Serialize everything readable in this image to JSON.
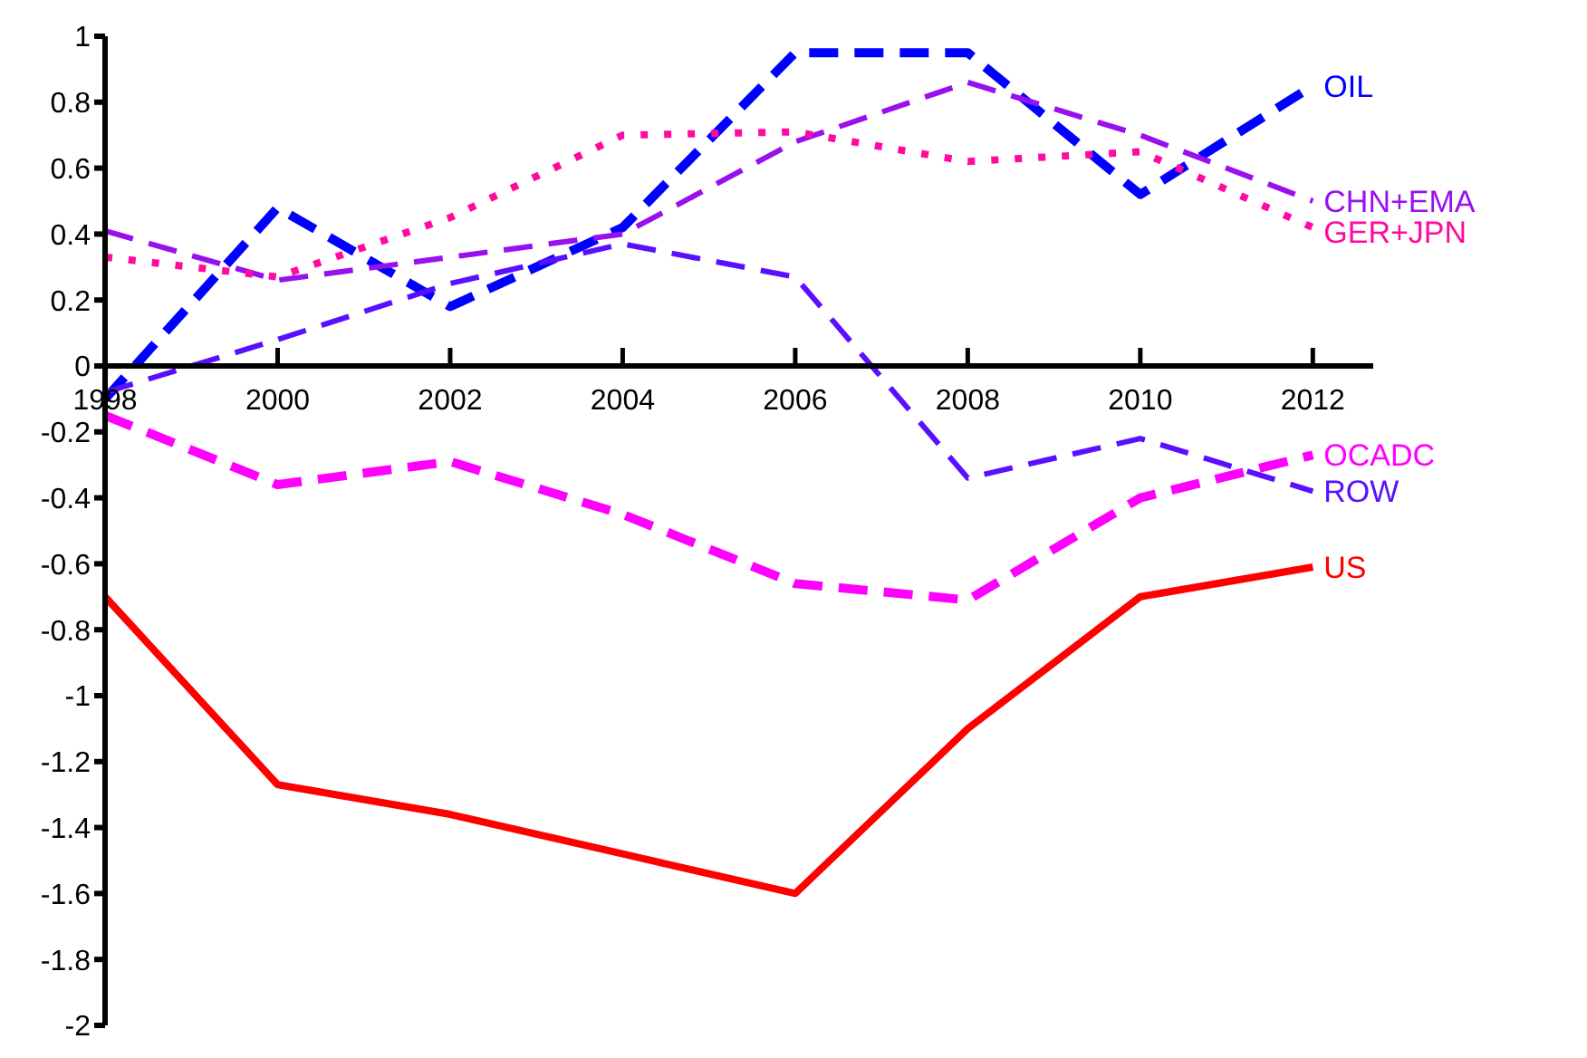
{
  "chart_data": {
    "type": "line",
    "x": [
      1998,
      2000,
      2002,
      2004,
      2006,
      2008,
      2010,
      2012
    ],
    "xlim": [
      1998,
      2012.7
    ],
    "xticks": [
      1998,
      2000,
      2002,
      2004,
      2006,
      2008,
      2010,
      2012
    ],
    "ylim": [
      -2,
      1
    ],
    "yticks": [
      -2,
      -1.8,
      -1.6,
      -1.4,
      -1.2,
      -1,
      -0.8,
      -0.6,
      -0.4,
      -0.2,
      0,
      0.2,
      0.4,
      0.6,
      0.8,
      1
    ],
    "grid": false,
    "legend": false,
    "marker": "none",
    "series": [
      {
        "name": "OIL",
        "color": "#0000ff",
        "line_style": "dashed",
        "values": [
          -0.1,
          0.48,
          0.18,
          0.42,
          0.95,
          0.95,
          0.52,
          0.85
        ]
      },
      {
        "name": "CHN+EMA",
        "color": "#9910f0",
        "line_style": "dashed",
        "values": [
          0.41,
          0.26,
          0.33,
          0.4,
          0.68,
          0.86,
          0.7,
          0.5
        ]
      },
      {
        "name": "GER+JPN",
        "color": "#ff0aa0",
        "line_style": "dotted",
        "values": [
          0.33,
          0.27,
          0.45,
          0.7,
          0.71,
          0.62,
          0.65,
          0.42
        ]
      },
      {
        "name": "OCADC",
        "color": "#ff00ff",
        "line_style": "dashed",
        "values": [
          -0.15,
          -0.36,
          -0.29,
          -0.45,
          -0.66,
          -0.71,
          -0.4,
          -0.27
        ]
      },
      {
        "name": "ROW",
        "color": "#5a10ff",
        "line_style": "dashed",
        "values": [
          -0.08,
          0.08,
          0.25,
          0.37,
          0.27,
          -0.34,
          -0.22,
          -0.38
        ]
      },
      {
        "name": "US",
        "color": "#ff0000",
        "line_style": "solid",
        "values": [
          -0.7,
          -1.27,
          -1.36,
          -1.48,
          -1.6,
          -1.1,
          -0.7,
          -0.61
        ]
      }
    ]
  }
}
